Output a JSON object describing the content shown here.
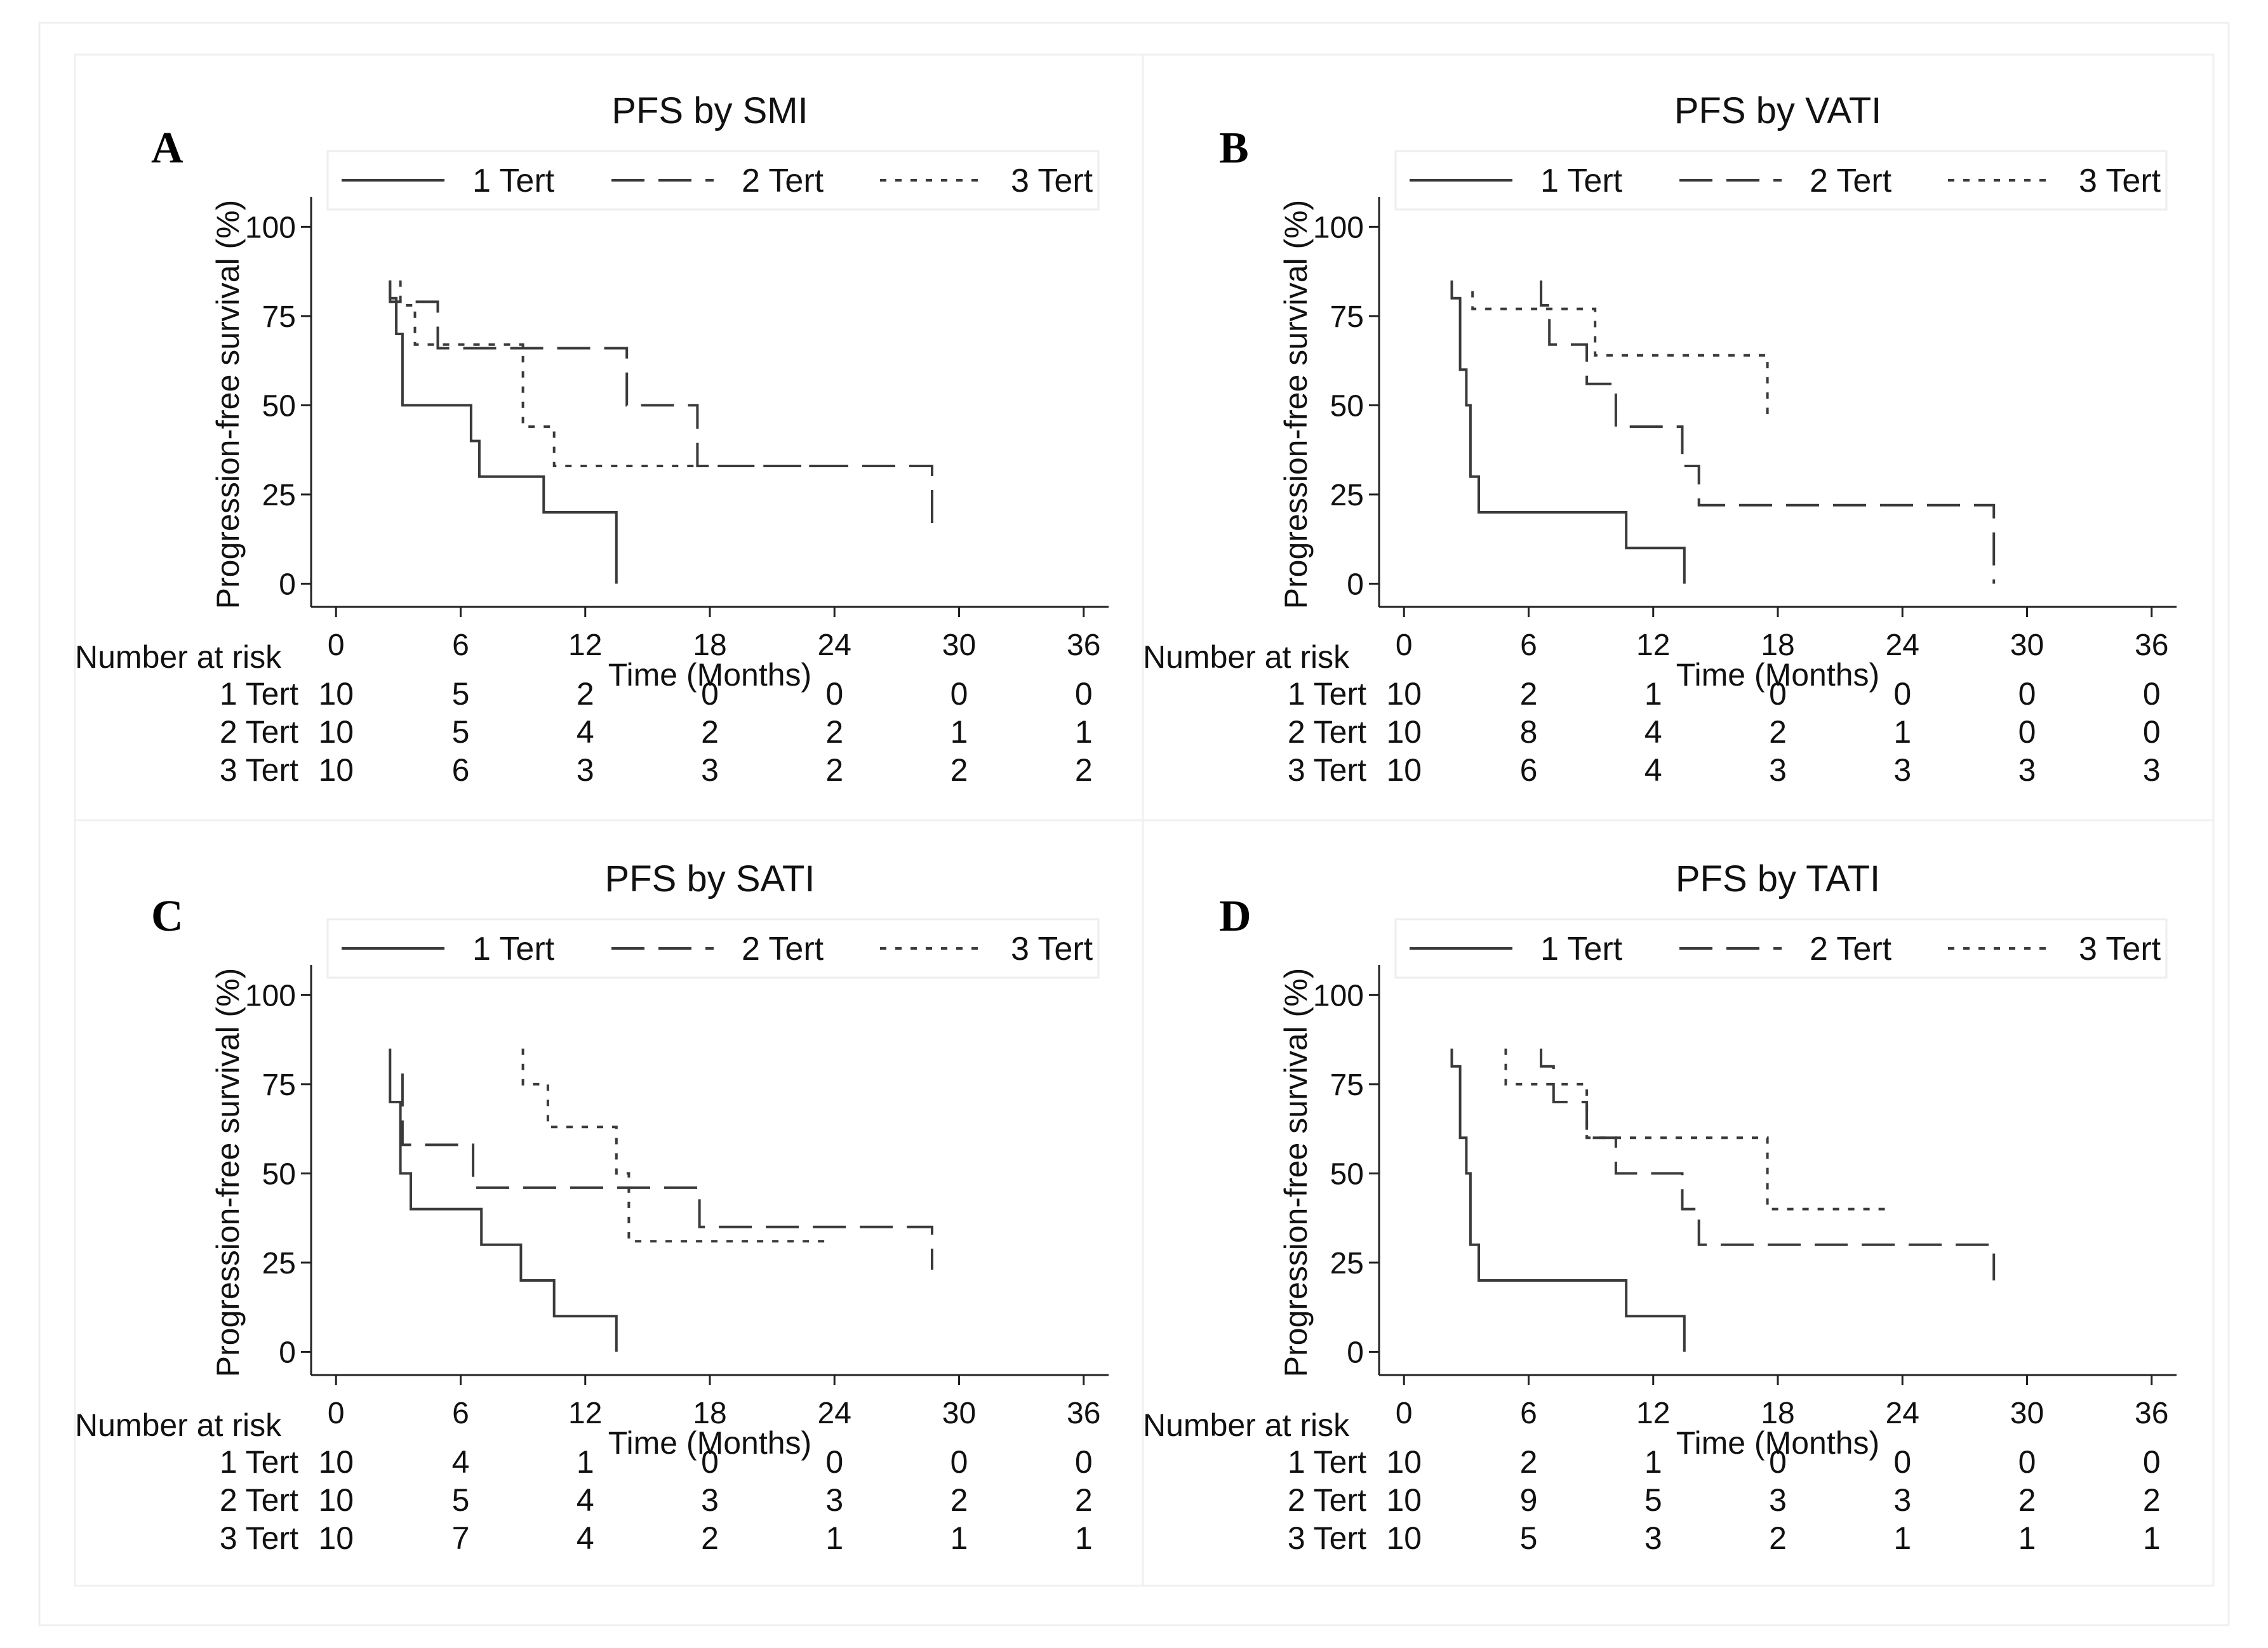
{
  "chart_data": [
    {
      "type": "line",
      "letter": "A",
      "title": "PFS by SMI",
      "xlabel": "Time (Months)",
      "ylabel": "Progression-free survival (%)",
      "xticks": [
        0,
        6,
        12,
        18,
        24,
        30,
        36
      ],
      "yticks": [
        0,
        25,
        50,
        75,
        100
      ],
      "xlim": [
        -1.2,
        37.2
      ],
      "ylim": [
        -6.5,
        107
      ],
      "legend": [
        "1 Tert",
        "2 Tert",
        "3 Tert"
      ],
      "series": [
        {
          "name": "1 Tert",
          "points": [
            [
              2.6,
              85
            ],
            [
              2.6,
              80
            ],
            [
              2.9,
              80
            ],
            [
              2.9,
              70
            ],
            [
              3.2,
              70
            ],
            [
              3.2,
              50
            ],
            [
              6.5,
              50
            ],
            [
              6.5,
              40
            ],
            [
              6.9,
              40
            ],
            [
              6.9,
              30
            ],
            [
              10,
              30
            ],
            [
              10,
              20
            ],
            [
              13.5,
              20
            ],
            [
              13.5,
              0
            ]
          ]
        },
        {
          "name": "2 Tert",
          "points": [
            [
              2.6,
              85
            ],
            [
              2.6,
              79
            ],
            [
              4.9,
              79
            ],
            [
              4.9,
              66
            ],
            [
              14,
              66
            ],
            [
              14,
              50
            ],
            [
              17.4,
              50
            ],
            [
              17.4,
              33
            ],
            [
              28.7,
              33
            ],
            [
              28.7,
              16
            ]
          ]
        },
        {
          "name": "3 Tert",
          "points": [
            [
              3.1,
              85
            ],
            [
              3.1,
              78
            ],
            [
              3.8,
              78
            ],
            [
              3.8,
              67
            ],
            [
              9,
              67
            ],
            [
              9,
              44
            ],
            [
              10.5,
              44
            ],
            [
              10.5,
              33
            ],
            [
              24,
              33
            ]
          ]
        }
      ],
      "risk_table": {
        "header": "Number at risk",
        "rows": [
          {
            "label": "1 Tert",
            "values": [
              "10",
              "5",
              "2",
              "0",
              "0",
              "0",
              "0"
            ]
          },
          {
            "label": "2 Tert",
            "values": [
              "10",
              "5",
              "4",
              "2",
              "2",
              "1",
              "1"
            ]
          },
          {
            "label": "3 Tert",
            "values": [
              "10",
              "6",
              "3",
              "3",
              "2",
              "2",
              "2"
            ]
          }
        ]
      }
    },
    {
      "type": "line",
      "letter": "B",
      "title": "PFS by VATI",
      "xlabel": "Time (Months)",
      "ylabel": "Progression-free survival (%)",
      "xticks": [
        0,
        6,
        12,
        18,
        24,
        30,
        36
      ],
      "yticks": [
        0,
        25,
        50,
        75,
        100
      ],
      "xlim": [
        -1.2,
        37.2
      ],
      "ylim": [
        -6.5,
        107
      ],
      "legend": [
        "1 Tert",
        "2 Tert",
        "3 Tert"
      ],
      "series": [
        {
          "name": "1 Tert",
          "points": [
            [
              2.3,
              85
            ],
            [
              2.3,
              80
            ],
            [
              2.7,
              80
            ],
            [
              2.7,
              60
            ],
            [
              3,
              60
            ],
            [
              3,
              50
            ],
            [
              3.2,
              50
            ],
            [
              3.2,
              30
            ],
            [
              3.6,
              30
            ],
            [
              3.6,
              20
            ],
            [
              10.7,
              20
            ],
            [
              10.7,
              10
            ],
            [
              13.5,
              10
            ],
            [
              13.5,
              0
            ]
          ]
        },
        {
          "name": "2 Tert",
          "points": [
            [
              6.6,
              85
            ],
            [
              6.6,
              78
            ],
            [
              7,
              78
            ],
            [
              7,
              67
            ],
            [
              8.8,
              67
            ],
            [
              8.8,
              56
            ],
            [
              10.2,
              56
            ],
            [
              10.2,
              44
            ],
            [
              13.4,
              44
            ],
            [
              13.4,
              33
            ],
            [
              14.2,
              33
            ],
            [
              14.2,
              22
            ],
            [
              28.4,
              22
            ],
            [
              28.4,
              0
            ]
          ]
        },
        {
          "name": "3 Tert",
          "points": [
            [
              3.3,
              82
            ],
            [
              3.3,
              77
            ],
            [
              9.2,
              77
            ],
            [
              9.2,
              64
            ],
            [
              17.5,
              64
            ],
            [
              17.5,
              47
            ]
          ]
        }
      ],
      "risk_table": {
        "header": "Number at risk",
        "rows": [
          {
            "label": "1 Tert",
            "values": [
              "10",
              "2",
              "1",
              "0",
              "0",
              "0",
              "0"
            ]
          },
          {
            "label": "2 Tert",
            "values": [
              "10",
              "8",
              "4",
              "2",
              "1",
              "0",
              "0"
            ]
          },
          {
            "label": "3 Tert",
            "values": [
              "10",
              "6",
              "4",
              "3",
              "3",
              "3",
              "3"
            ]
          }
        ]
      }
    },
    {
      "type": "line",
      "letter": "C",
      "title": "PFS by SATI",
      "xlabel": "Time (Months)",
      "ylabel": "Progression-free survival (%)",
      "xticks": [
        0,
        6,
        12,
        18,
        24,
        30,
        36
      ],
      "yticks": [
        0,
        25,
        50,
        75,
        100
      ],
      "xlim": [
        -1.2,
        37.2
      ],
      "ylim": [
        -6.5,
        107
      ],
      "legend": [
        "1 Tert",
        "2 Tert",
        "3 Tert"
      ],
      "series": [
        {
          "name": "1 Tert",
          "points": [
            [
              2.6,
              85
            ],
            [
              2.6,
              70
            ],
            [
              3.1,
              70
            ],
            [
              3.1,
              50
            ],
            [
              3.6,
              50
            ],
            [
              3.6,
              40
            ],
            [
              7,
              40
            ],
            [
              7,
              30
            ],
            [
              8.9,
              30
            ],
            [
              8.9,
              20
            ],
            [
              10.5,
              20
            ],
            [
              10.5,
              10
            ],
            [
              13.5,
              10
            ],
            [
              13.5,
              0
            ]
          ]
        },
        {
          "name": "2 Tert",
          "points": [
            [
              3.2,
              78
            ],
            [
              3.2,
              58
            ],
            [
              6.6,
              58
            ],
            [
              6.6,
              46
            ],
            [
              17.5,
              46
            ],
            [
              17.5,
              35
            ],
            [
              28.7,
              35
            ],
            [
              28.7,
              23
            ]
          ]
        },
        {
          "name": "3 Tert",
          "points": [
            [
              9,
              85
            ],
            [
              9,
              75
            ],
            [
              10.2,
              75
            ],
            [
              10.2,
              63
            ],
            [
              13.5,
              63
            ],
            [
              13.5,
              50
            ],
            [
              14.1,
              50
            ],
            [
              14.1,
              31
            ],
            [
              23.8,
              31
            ]
          ]
        }
      ],
      "risk_table": {
        "header": "Number at risk",
        "rows": [
          {
            "label": "1 Tert",
            "values": [
              "10",
              "4",
              "1",
              "0",
              "0",
              "0",
              "0"
            ]
          },
          {
            "label": "2 Tert",
            "values": [
              "10",
              "5",
              "4",
              "3",
              "3",
              "2",
              "2"
            ]
          },
          {
            "label": "3 Tert",
            "values": [
              "10",
              "7",
              "4",
              "2",
              "1",
              "1",
              "1"
            ]
          }
        ]
      }
    },
    {
      "type": "line",
      "letter": "D",
      "title": "PFS by TATI",
      "xlabel": "Time (Months)",
      "ylabel": "Progression-free survival (%)",
      "xticks": [
        0,
        6,
        12,
        18,
        24,
        30,
        36
      ],
      "yticks": [
        0,
        25,
        50,
        75,
        100
      ],
      "xlim": [
        -1.2,
        37.2
      ],
      "ylim": [
        -6.5,
        107
      ],
      "legend": [
        "1 Tert",
        "2 Tert",
        "3 Tert"
      ],
      "series": [
        {
          "name": "1 Tert",
          "points": [
            [
              2.3,
              85
            ],
            [
              2.3,
              80
            ],
            [
              2.7,
              80
            ],
            [
              2.7,
              60
            ],
            [
              3,
              60
            ],
            [
              3,
              50
            ],
            [
              3.2,
              50
            ],
            [
              3.2,
              30
            ],
            [
              3.6,
              30
            ],
            [
              3.6,
              20
            ],
            [
              10.7,
              20
            ],
            [
              10.7,
              10
            ],
            [
              13.5,
              10
            ],
            [
              13.5,
              0
            ]
          ]
        },
        {
          "name": "2 Tert",
          "points": [
            [
              6.6,
              85
            ],
            [
              6.6,
              80
            ],
            [
              7.2,
              80
            ],
            [
              7.2,
              70
            ],
            [
              8.8,
              70
            ],
            [
              8.8,
              60
            ],
            [
              10.2,
              60
            ],
            [
              10.2,
              50
            ],
            [
              13.4,
              50
            ],
            [
              13.4,
              40
            ],
            [
              14.2,
              40
            ],
            [
              14.2,
              30
            ],
            [
              28.4,
              30
            ],
            [
              28.4,
              20
            ]
          ]
        },
        {
          "name": "3 Tert",
          "points": [
            [
              4.9,
              85
            ],
            [
              4.9,
              75
            ],
            [
              8.8,
              75
            ],
            [
              8.8,
              60
            ],
            [
              17.5,
              60
            ],
            [
              17.5,
              40
            ],
            [
              23.5,
              40
            ]
          ]
        }
      ],
      "risk_table": {
        "header": "Number at risk",
        "rows": [
          {
            "label": "1 Tert",
            "values": [
              "10",
              "2",
              "1",
              "0",
              "0",
              "0",
              "0"
            ]
          },
          {
            "label": "2 Tert",
            "values": [
              "10",
              "9",
              "5",
              "3",
              "3",
              "2",
              "2"
            ]
          },
          {
            "label": "3 Tert",
            "values": [
              "10",
              "5",
              "3",
              "2",
              "1",
              "1",
              "1"
            ]
          }
        ]
      }
    }
  ]
}
